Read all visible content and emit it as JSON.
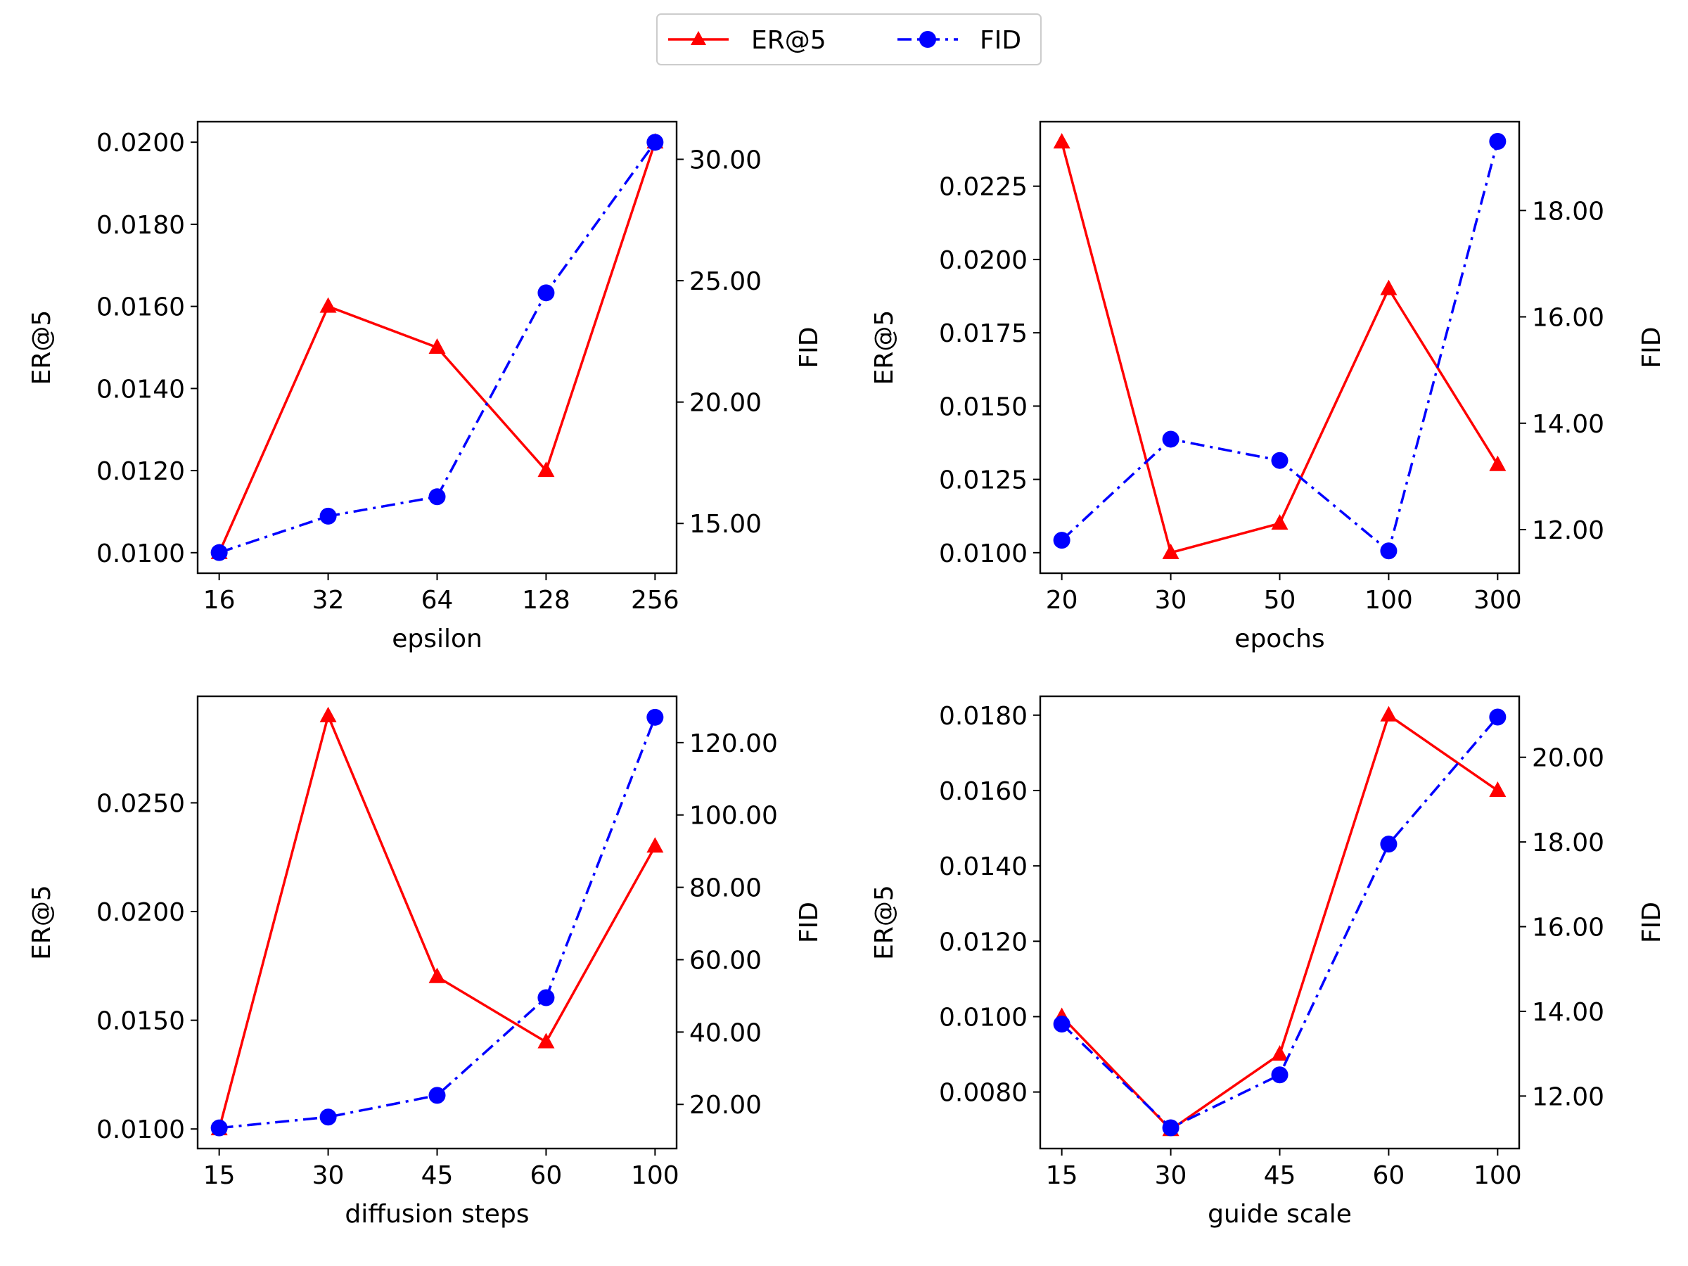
{
  "legend": {
    "entries": [
      {
        "label": "ER@5",
        "color": "#ff0000",
        "marker": "triangle",
        "linestyle": "solid"
      },
      {
        "label": "FID",
        "color": "#0000ff",
        "marker": "circle",
        "linestyle": "dashdot"
      }
    ]
  },
  "chart_data": [
    {
      "type": "line",
      "title": "",
      "xlabel": "epsilon",
      "categories": [
        "16",
        "32",
        "64",
        "128",
        "256"
      ],
      "left_axis": {
        "label": "ER@5",
        "ylim": [
          0.0095,
          0.0205
        ],
        "ticks": [
          0.01,
          0.012,
          0.014,
          0.016,
          0.018,
          0.02
        ],
        "tick_labels": [
          "0.0100",
          "0.0120",
          "0.0140",
          "0.0160",
          "0.0180",
          "0.0200"
        ]
      },
      "right_axis": {
        "label": "FID",
        "ylim": [
          12.95,
          31.55
        ],
        "ticks": [
          15,
          20,
          25,
          30
        ],
        "tick_labels": [
          "15.00",
          "20.00",
          "25.00",
          "30.00"
        ]
      },
      "series": [
        {
          "name": "ER@5",
          "axis": "left",
          "values": [
            0.01,
            0.016,
            0.015,
            0.012,
            0.02
          ]
        },
        {
          "name": "FID",
          "axis": "right",
          "values": [
            13.8,
            15.3,
            16.1,
            24.5,
            30.7
          ]
        }
      ]
    },
    {
      "type": "line",
      "title": "",
      "xlabel": "epochs",
      "categories": [
        "20",
        "30",
        "50",
        "100",
        "300"
      ],
      "left_axis": {
        "label": "ER@5",
        "ylim": [
          0.0093,
          0.0247
        ],
        "ticks": [
          0.01,
          0.0125,
          0.015,
          0.0175,
          0.02,
          0.0225
        ],
        "tick_labels": [
          "0.0100",
          "0.0125",
          "0.0150",
          "0.0175",
          "0.0200",
          "0.0225"
        ]
      },
      "right_axis": {
        "label": "FID",
        "ylim": [
          11.18,
          19.67
        ],
        "ticks": [
          12,
          14,
          16,
          18
        ],
        "tick_labels": [
          "12.00",
          "14.00",
          "16.00",
          "18.00"
        ]
      },
      "series": [
        {
          "name": "ER@5",
          "axis": "left",
          "values": [
            0.024,
            0.01,
            0.011,
            0.019,
            0.013
          ]
        },
        {
          "name": "FID",
          "axis": "right",
          "values": [
            11.8,
            13.7,
            13.3,
            11.6,
            19.3
          ]
        }
      ]
    },
    {
      "type": "line",
      "title": "",
      "xlabel": "diffusion steps",
      "categories": [
        "15",
        "30",
        "45",
        "60",
        "100"
      ],
      "left_axis": {
        "label": "ER@5",
        "ylim": [
          0.0091,
          0.0299
        ],
        "ticks": [
          0.01,
          0.015,
          0.02,
          0.025
        ],
        "tick_labels": [
          "0.0100",
          "0.0150",
          "0.0200",
          "0.0250"
        ]
      },
      "right_axis": {
        "label": "FID",
        "ylim": [
          7.8,
          132.8
        ],
        "ticks": [
          20,
          40,
          60,
          80,
          100,
          120
        ],
        "tick_labels": [
          "20.00",
          "40.00",
          "60.00",
          "80.00",
          "100.00",
          "120.00"
        ]
      },
      "series": [
        {
          "name": "ER@5",
          "axis": "left",
          "values": [
            0.01,
            0.029,
            0.017,
            0.014,
            0.023
          ]
        },
        {
          "name": "FID",
          "axis": "right",
          "values": [
            13.5,
            16.5,
            22.5,
            49.5,
            127
          ]
        }
      ]
    },
    {
      "type": "line",
      "title": "",
      "xlabel": "guide scale",
      "categories": [
        "15",
        "30",
        "45",
        "60",
        "100"
      ],
      "left_axis": {
        "label": "ER@5",
        "ylim": [
          0.0065,
          0.0185
        ],
        "ticks": [
          0.008,
          0.01,
          0.012,
          0.014,
          0.016,
          0.018
        ],
        "tick_labels": [
          "0.0080",
          "0.0100",
          "0.0120",
          "0.0140",
          "0.0160",
          "0.0180"
        ]
      },
      "right_axis": {
        "label": "FID",
        "ylim": [
          10.76,
          21.44
        ],
        "ticks": [
          12,
          14,
          16,
          18,
          20
        ],
        "tick_labels": [
          "12.00",
          "14.00",
          "16.00",
          "18.00",
          "20.00"
        ]
      },
      "series": [
        {
          "name": "ER@5",
          "axis": "left",
          "values": [
            0.01,
            0.007,
            0.009,
            0.018,
            0.016
          ]
        },
        {
          "name": "FID",
          "axis": "right",
          "values": [
            13.7,
            11.25,
            12.5,
            17.95,
            20.95
          ]
        }
      ]
    }
  ]
}
